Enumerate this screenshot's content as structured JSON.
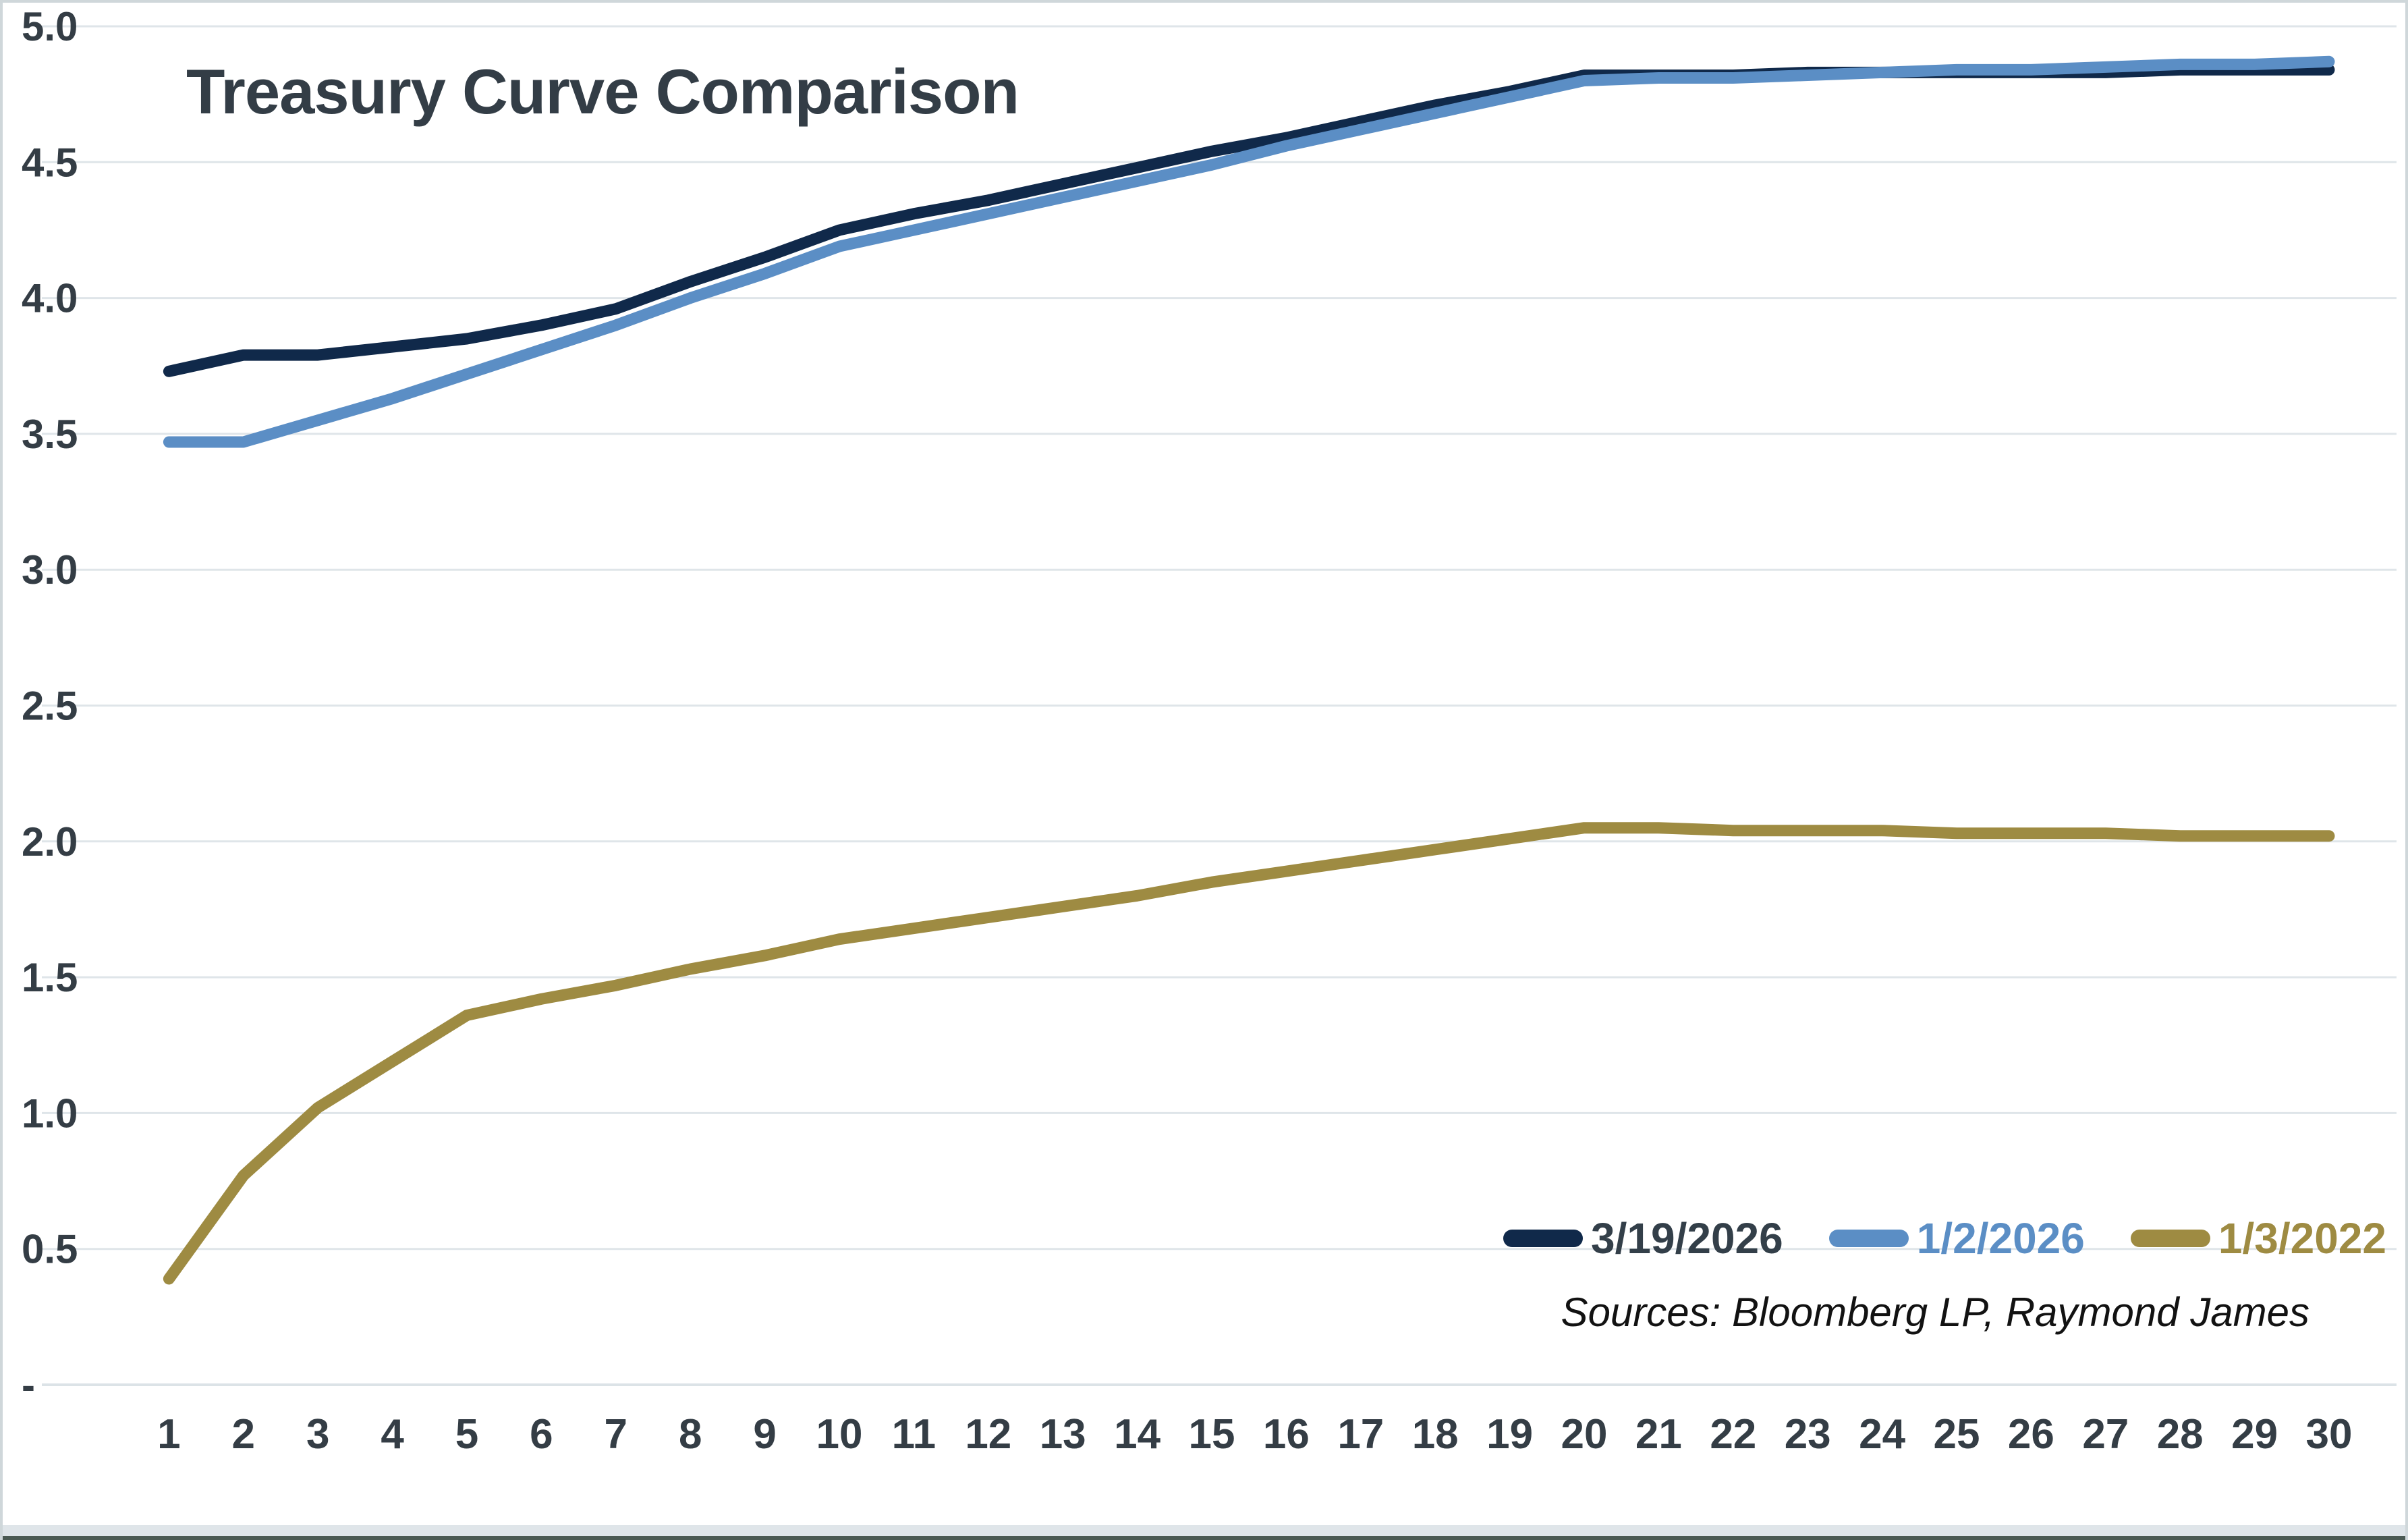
{
  "chart_data": {
    "type": "line",
    "title": "Treasury Curve Comparison",
    "source_note": "Sources: Bloomberg LP, Raymond James",
    "xlabel": "",
    "ylabel": "",
    "x": [
      1,
      2,
      3,
      4,
      5,
      6,
      7,
      8,
      9,
      10,
      11,
      12,
      13,
      14,
      15,
      16,
      17,
      18,
      19,
      20,
      21,
      22,
      23,
      24,
      25,
      26,
      27,
      28,
      29,
      30
    ],
    "xtick_labels": [
      "1",
      "2",
      "3",
      "4",
      "5",
      "6",
      "7",
      "8",
      "9",
      "10",
      "11",
      "12",
      "13",
      "14",
      "15",
      "16",
      "17",
      "18",
      "19",
      "20",
      "21",
      "22",
      "23",
      "24",
      "25",
      "26",
      "27",
      "28",
      "29",
      "30"
    ],
    "ylim": [
      0,
      5
    ],
    "yticks": [
      {
        "label": "5.0",
        "value": 5.0
      },
      {
        "label": "4.5",
        "value": 4.5
      },
      {
        "label": "4.0",
        "value": 4.0
      },
      {
        "label": "3.5",
        "value": 3.5
      },
      {
        "label": "3.0",
        "value": 3.0
      },
      {
        "label": "2.5",
        "value": 2.5
      },
      {
        "label": "2.0",
        "value": 2.0
      },
      {
        "label": "1.5",
        "value": 1.5
      },
      {
        "label": "1.0",
        "value": 1.0
      },
      {
        "label": "0.5",
        "value": 0.5
      },
      {
        "label": "-",
        "value": 0.0
      }
    ],
    "grid": "horizontal",
    "legend_position": "bottom-right",
    "series": [
      {
        "name": "3/19/2026",
        "color": "#10294a",
        "label_color": "#333f49",
        "values": [
          3.73,
          3.79,
          3.79,
          3.82,
          3.85,
          3.9,
          3.96,
          4.06,
          4.15,
          4.25,
          4.31,
          4.36,
          4.42,
          4.48,
          4.54,
          4.59,
          4.65,
          4.71,
          4.76,
          4.82,
          4.82,
          4.82,
          4.83,
          4.83,
          4.83,
          4.83,
          4.83,
          4.84,
          4.84,
          4.84
        ]
      },
      {
        "name": "1/2/2026",
        "color": "#5b8ec5",
        "label_color": "#5b8ec5",
        "values": [
          3.47,
          3.47,
          3.55,
          3.63,
          3.72,
          3.81,
          3.9,
          4.0,
          4.09,
          4.19,
          4.25,
          4.31,
          4.37,
          4.43,
          4.49,
          4.56,
          4.62,
          4.68,
          4.74,
          4.8,
          4.81,
          4.81,
          4.82,
          4.83,
          4.84,
          4.84,
          4.85,
          4.86,
          4.86,
          4.87
        ]
      },
      {
        "name": "1/3/2022",
        "color": "#9e8b42",
        "label_color": "#9e8b42",
        "values": [
          0.39,
          0.77,
          1.02,
          1.19,
          1.36,
          1.42,
          1.47,
          1.53,
          1.58,
          1.64,
          1.68,
          1.72,
          1.76,
          1.8,
          1.85,
          1.89,
          1.93,
          1.97,
          2.01,
          2.05,
          2.05,
          2.04,
          2.04,
          2.04,
          2.03,
          2.03,
          2.03,
          2.02,
          2.02,
          2.02
        ]
      }
    ]
  },
  "page": {
    "background": "#ffffff",
    "border_color": "#cfd7da",
    "grid_color": "#dfe5e9",
    "text_color": "#343d45",
    "bottom_line_color": "#4b5a53"
  }
}
